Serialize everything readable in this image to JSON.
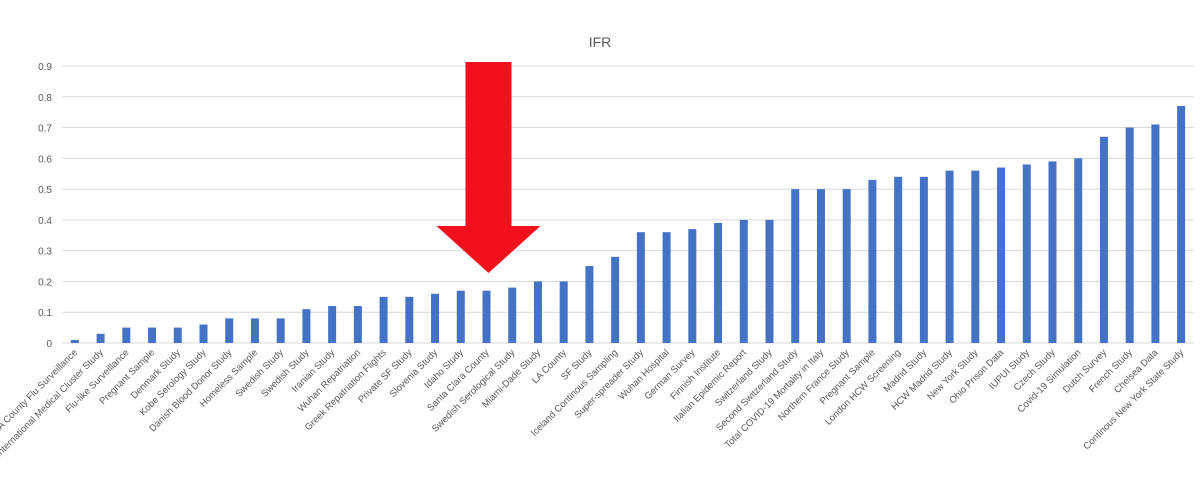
{
  "chart_data": {
    "type": "bar",
    "title": "IFR",
    "xlabel": "",
    "ylabel": "",
    "ylim": [
      0,
      0.9
    ],
    "yticks": [
      0,
      0.1,
      0.2,
      0.3,
      0.4,
      0.5,
      0.6,
      0.7,
      0.8,
      0.9
    ],
    "grid": true,
    "bar_color": "#4472c4",
    "annotation": {
      "type": "arrow",
      "color": "#f2101c",
      "points_to": "Santa Clara County"
    },
    "categories": [
      "LA County Flu Surveillance",
      "International Medical Cluster Study",
      "Flu-like Surveillance",
      "Pregnant Sample",
      "Denmark Study",
      "Kobe Serology Study",
      "Danish Blood Donor Study",
      "Homeless Sample",
      "Swedish Study",
      "Swedish Study",
      "Iranian Study",
      "Wuhan Repatriation",
      "Greek Repatriation Flights",
      "Private SF Study",
      "Slovenia Study",
      "Idaho Study",
      "Santa Clara County",
      "Swedish Serological Study",
      "Miami-Dade Study",
      "LA County",
      "SF Study",
      "Iceland Continous Sampling",
      "Super-spreader Study",
      "Wuhan Hospital",
      "German Survey",
      "Finnish Institute",
      "Italian Epidemic Report",
      "Switzerland Study",
      "Second Switzerland Study",
      "Total COVID-19 Mortality in Italy",
      "Northern France Study",
      "Pregnant Sample",
      "London HCW Screening",
      "Madrid Study",
      "HCW Madrid Study",
      "New York Study",
      "Ohio Prison Data",
      "IUPUI Study",
      "Czech Study",
      "Covid-19 Simulation",
      "Dutch Survey",
      "French Study",
      "Chelsea Data",
      "Continous New York State Study"
    ],
    "values": [
      0.01,
      0.03,
      0.05,
      0.05,
      0.05,
      0.06,
      0.08,
      0.08,
      0.08,
      0.11,
      0.12,
      0.12,
      0.15,
      0.15,
      0.16,
      0.17,
      0.17,
      0.18,
      0.2,
      0.2,
      0.25,
      0.28,
      0.36,
      0.36,
      0.37,
      0.39,
      0.4,
      0.4,
      0.5,
      0.5,
      0.5,
      0.53,
      0.54,
      0.54,
      0.56,
      0.56,
      0.57,
      0.58,
      0.59,
      0.6,
      0.67,
      0.7,
      0.71,
      0.77
    ]
  }
}
